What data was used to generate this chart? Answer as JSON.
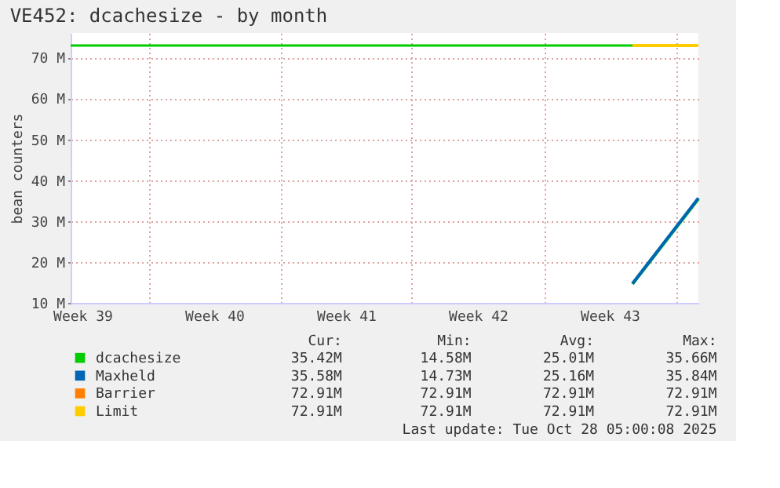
{
  "chart_data": {
    "type": "line",
    "title": "VE452: dcachesize - by month",
    "ylabel": "bean counters",
    "xlim": [
      "2025-09-24T21:00",
      "2025-10-28T05:00"
    ],
    "xticks": [
      {
        "value": "2025-09-25T12:00",
        "label": "Week 39"
      },
      {
        "value": "2025-09-29",
        "label": null
      },
      {
        "value": "2025-10-02T12:00",
        "label": "Week 40"
      },
      {
        "value": "2025-10-06",
        "label": null
      },
      {
        "value": "2025-10-09T12:00",
        "label": "Week 41"
      },
      {
        "value": "2025-10-13",
        "label": null
      },
      {
        "value": "2025-10-16T12:00",
        "label": "Week 42"
      },
      {
        "value": "2025-10-20",
        "label": null
      },
      {
        "value": "2025-10-23T12:00",
        "label": "Week 43"
      },
      {
        "value": "2025-10-27",
        "label": null
      }
    ],
    "ylim": [
      10,
      76
    ],
    "yticks": [
      {
        "value": 10,
        "label": "10 M"
      },
      {
        "value": 20,
        "label": "20 M"
      },
      {
        "value": 30,
        "label": "30 M"
      },
      {
        "value": 40,
        "label": "40 M"
      },
      {
        "value": 50,
        "label": "50 M"
      },
      {
        "value": 60,
        "label": "60 M"
      },
      {
        "value": 70,
        "label": "70 M"
      }
    ],
    "grid": true,
    "legend": "bottom",
    "series": [
      {
        "name": "dcachesize",
        "color": "#00cc00",
        "x": [
          "2025-10-24T17:00",
          "2025-10-28T05:00"
        ],
        "values": [
          14.6,
          35.4
        ]
      },
      {
        "name": "Maxheld",
        "color": "#0066b3",
        "x": [
          "2025-10-24T17:00",
          "2025-10-28T05:00"
        ],
        "values": [
          14.7,
          35.6
        ]
      },
      {
        "name": "Barrier",
        "color": "#ff8000",
        "values": [
          null,
          null
        ]
      },
      {
        "name": "Limit",
        "color": "#ffcc00",
        "x": [
          "2025-10-24T17:00",
          "2025-10-28T05:00"
        ],
        "values": [
          72.91,
          72.91
        ]
      }
    ],
    "ref_lines": [
      {
        "axis": "y",
        "value": 72.91,
        "label": null,
        "color": "#00cc00"
      }
    ],
    "annotations": [
      "Cur:",
      "Min:",
      "Avg:",
      "Max:",
      "35.42M",
      "14.58M",
      "25.01M",
      "35.66M",
      "35.58M",
      "14.73M",
      "25.16M",
      "35.84M",
      "72.91M",
      "72.91M",
      "72.91M",
      "72.91M",
      "72.91M",
      "72.91M",
      "72.91M",
      "72.91M",
      "Last update: Tue Oct 28 05:00:08 2025"
    ]
  }
}
